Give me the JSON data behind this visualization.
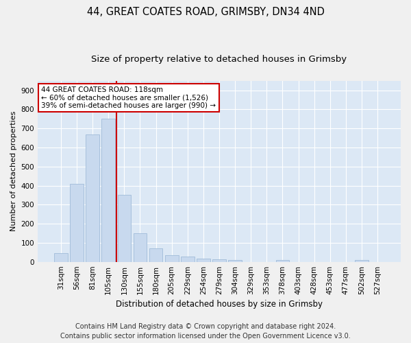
{
  "title_line1": "44, GREAT COATES ROAD, GRIMSBY, DN34 4ND",
  "title_line2": "Size of property relative to detached houses in Grimsby",
  "xlabel": "Distribution of detached houses by size in Grimsby",
  "ylabel": "Number of detached properties",
  "categories": [
    "31sqm",
    "56sqm",
    "81sqm",
    "105sqm",
    "130sqm",
    "155sqm",
    "180sqm",
    "205sqm",
    "229sqm",
    "254sqm",
    "279sqm",
    "304sqm",
    "329sqm",
    "353sqm",
    "378sqm",
    "403sqm",
    "428sqm",
    "453sqm",
    "477sqm",
    "502sqm",
    "527sqm"
  ],
  "values": [
    47,
    410,
    670,
    750,
    353,
    150,
    70,
    35,
    27,
    18,
    12,
    8,
    0,
    0,
    8,
    0,
    0,
    0,
    0,
    8,
    0
  ],
  "bar_color": "#c8d9ee",
  "bar_edge_color": "#a0bcd8",
  "highlight_line_color": "#cc0000",
  "annotation_text": "44 GREAT COATES ROAD: 118sqm\n← 60% of detached houses are smaller (1,526)\n39% of semi-detached houses are larger (990) →",
  "annotation_box_color": "#ffffff",
  "annotation_box_edge": "#cc0000",
  "ylim": [
    0,
    950
  ],
  "yticks": [
    0,
    100,
    200,
    300,
    400,
    500,
    600,
    700,
    800,
    900
  ],
  "footer_line1": "Contains HM Land Registry data © Crown copyright and database right 2024.",
  "footer_line2": "Contains public sector information licensed under the Open Government Licence v3.0.",
  "fig_bg_color": "#f0f0f0",
  "plot_bg_color": "#dce8f5",
  "grid_color": "#ffffff",
  "title_fontsize": 10.5,
  "subtitle_fontsize": 9.5,
  "footer_fontsize": 7,
  "annotation_fontsize": 7.5,
  "axis_label_fontsize": 8.5,
  "tick_fontsize": 7.5,
  "ylabel_fontsize": 8
}
